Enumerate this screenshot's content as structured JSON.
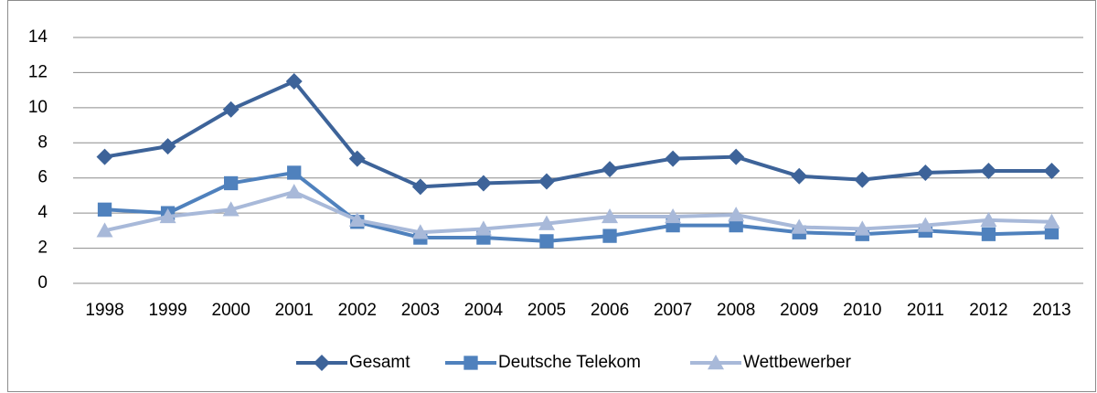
{
  "chart_data": {
    "type": "line",
    "categories": [
      "1998",
      "1999",
      "2000",
      "2001",
      "2002",
      "2003",
      "2004",
      "2005",
      "2006",
      "2007",
      "2008",
      "2009",
      "2010",
      "2011",
      "2012",
      "2013"
    ],
    "series": [
      {
        "name": "Gesamt",
        "color": "#3d6399",
        "marker": "diamond",
        "values": [
          7.2,
          7.8,
          9.9,
          11.5,
          7.1,
          5.5,
          5.7,
          5.8,
          6.5,
          7.1,
          7.2,
          6.1,
          5.9,
          6.3,
          6.4,
          6.4
        ]
      },
      {
        "name": "Deutsche Telekom",
        "color": "#4f81bd",
        "marker": "square",
        "values": [
          4.2,
          4.0,
          5.7,
          6.3,
          3.5,
          2.6,
          2.6,
          2.4,
          2.7,
          3.3,
          3.3,
          2.9,
          2.8,
          3.0,
          2.8,
          2.9
        ]
      },
      {
        "name": "Wettbewerber",
        "color": "#a8b9d9",
        "marker": "triangle",
        "values": [
          3.0,
          3.8,
          4.2,
          5.2,
          3.6,
          2.9,
          3.1,
          3.4,
          3.8,
          3.8,
          3.9,
          3.2,
          3.1,
          3.3,
          3.6,
          3.5
        ]
      }
    ],
    "ylim": [
      0,
      14
    ],
    "yticks": [
      0,
      2,
      4,
      6,
      8,
      10,
      12,
      14
    ],
    "grid": true,
    "legend": "bottom"
  }
}
